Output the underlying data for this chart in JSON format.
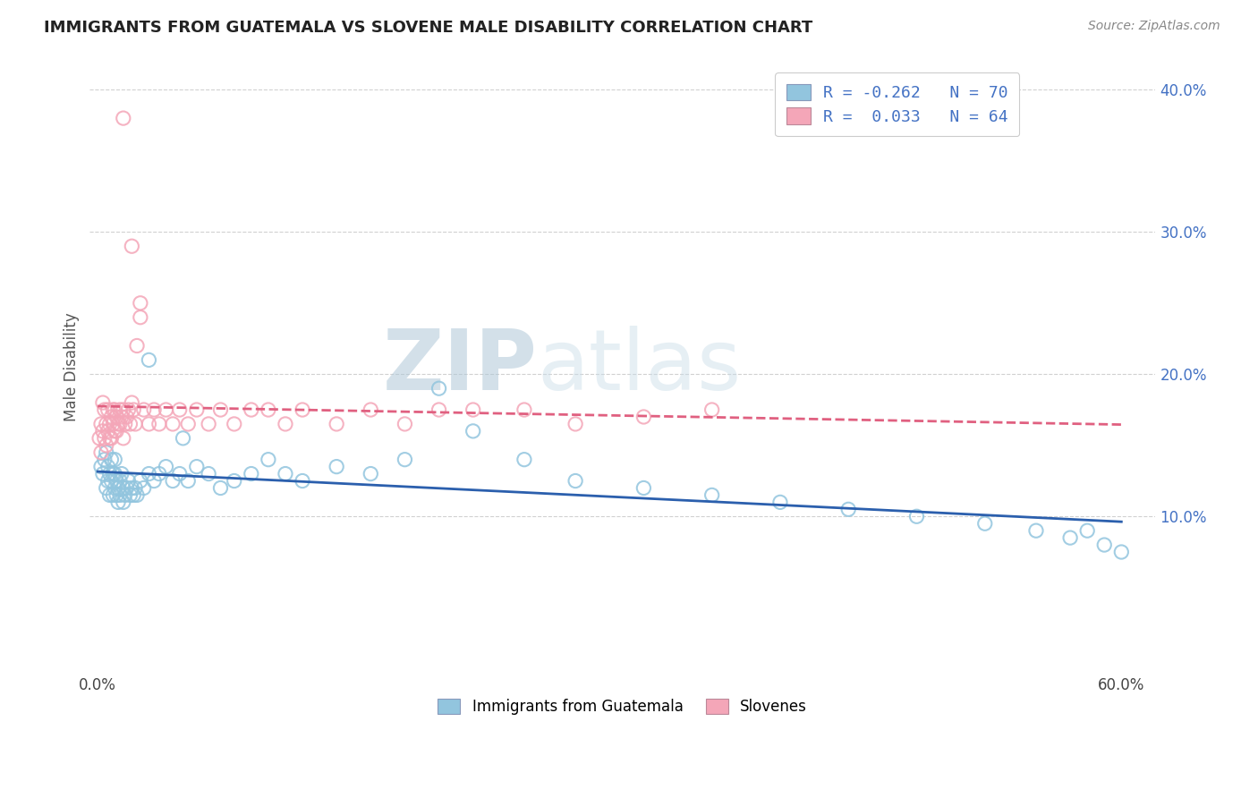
{
  "title": "IMMIGRANTS FROM GUATEMALA VS SLOVENE MALE DISABILITY CORRELATION CHART",
  "source": "Source: ZipAtlas.com",
  "ylabel": "Male Disability",
  "xlim": [
    -0.005,
    0.62
  ],
  "ylim": [
    -0.01,
    0.42
  ],
  "series1_name": "Immigrants from Guatemala",
  "series1_color": "#92c5de",
  "series1_line_color": "#2b5fad",
  "series1_R": -0.262,
  "series1_N": 70,
  "series2_name": "Slovenes",
  "series2_color": "#f4a6b8",
  "series2_line_color": "#e06080",
  "series2_R": 0.033,
  "series2_N": 64,
  "watermark_zip": "ZIP",
  "watermark_atlas": "atlas",
  "background_color": "#ffffff",
  "grid_color": "#cccccc",
  "yticks": [
    0.1,
    0.2,
    0.3,
    0.4
  ],
  "ytick_labels": [
    "10.0%",
    "20.0%",
    "30.0%",
    "40.0%"
  ],
  "xtick_vals": [
    0.0,
    0.6
  ],
  "xtick_labels": [
    "0.0%",
    "60.0%"
  ],
  "series1_x": [
    0.002,
    0.003,
    0.004,
    0.005,
    0.005,
    0.006,
    0.006,
    0.007,
    0.007,
    0.008,
    0.008,
    0.009,
    0.009,
    0.01,
    0.01,
    0.01,
    0.011,
    0.011,
    0.012,
    0.012,
    0.013,
    0.013,
    0.014,
    0.015,
    0.015,
    0.016,
    0.017,
    0.018,
    0.019,
    0.02,
    0.021,
    0.022,
    0.023,
    0.025,
    0.027,
    0.03,
    0.033,
    0.036,
    0.04,
    0.044,
    0.048,
    0.053,
    0.058,
    0.065,
    0.072,
    0.08,
    0.09,
    0.1,
    0.11,
    0.12,
    0.14,
    0.16,
    0.18,
    0.2,
    0.22,
    0.25,
    0.28,
    0.32,
    0.36,
    0.4,
    0.44,
    0.48,
    0.52,
    0.55,
    0.57,
    0.58,
    0.59,
    0.6,
    0.03,
    0.05
  ],
  "series1_y": [
    0.135,
    0.13,
    0.14,
    0.12,
    0.145,
    0.125,
    0.135,
    0.115,
    0.13,
    0.125,
    0.14,
    0.115,
    0.13,
    0.12,
    0.13,
    0.14,
    0.115,
    0.125,
    0.11,
    0.12,
    0.115,
    0.125,
    0.13,
    0.11,
    0.12,
    0.115,
    0.12,
    0.125,
    0.115,
    0.12,
    0.115,
    0.12,
    0.115,
    0.125,
    0.12,
    0.13,
    0.125,
    0.13,
    0.135,
    0.125,
    0.13,
    0.125,
    0.135,
    0.13,
    0.12,
    0.125,
    0.13,
    0.14,
    0.13,
    0.125,
    0.135,
    0.13,
    0.14,
    0.19,
    0.16,
    0.14,
    0.125,
    0.12,
    0.115,
    0.11,
    0.105,
    0.1,
    0.095,
    0.09,
    0.085,
    0.09,
    0.08,
    0.075,
    0.21,
    0.155
  ],
  "series2_x": [
    0.001,
    0.002,
    0.002,
    0.003,
    0.003,
    0.004,
    0.004,
    0.005,
    0.005,
    0.006,
    0.006,
    0.007,
    0.007,
    0.008,
    0.008,
    0.009,
    0.009,
    0.01,
    0.01,
    0.011,
    0.011,
    0.012,
    0.013,
    0.013,
    0.014,
    0.015,
    0.015,
    0.016,
    0.017,
    0.018,
    0.019,
    0.02,
    0.021,
    0.022,
    0.023,
    0.025,
    0.027,
    0.03,
    0.033,
    0.036,
    0.04,
    0.044,
    0.048,
    0.053,
    0.058,
    0.065,
    0.072,
    0.08,
    0.09,
    0.1,
    0.11,
    0.12,
    0.14,
    0.16,
    0.18,
    0.2,
    0.22,
    0.25,
    0.28,
    0.32,
    0.36,
    0.015,
    0.02,
    0.025
  ],
  "series2_y": [
    0.155,
    0.165,
    0.145,
    0.16,
    0.18,
    0.155,
    0.175,
    0.15,
    0.165,
    0.16,
    0.175,
    0.155,
    0.165,
    0.17,
    0.155,
    0.175,
    0.165,
    0.16,
    0.175,
    0.16,
    0.17,
    0.165,
    0.175,
    0.165,
    0.17,
    0.155,
    0.175,
    0.165,
    0.17,
    0.175,
    0.165,
    0.18,
    0.175,
    0.165,
    0.22,
    0.24,
    0.175,
    0.165,
    0.175,
    0.165,
    0.175,
    0.165,
    0.175,
    0.165,
    0.175,
    0.165,
    0.175,
    0.165,
    0.175,
    0.175,
    0.165,
    0.175,
    0.165,
    0.175,
    0.165,
    0.175,
    0.175,
    0.175,
    0.165,
    0.17,
    0.175,
    0.38,
    0.29,
    0.25
  ]
}
